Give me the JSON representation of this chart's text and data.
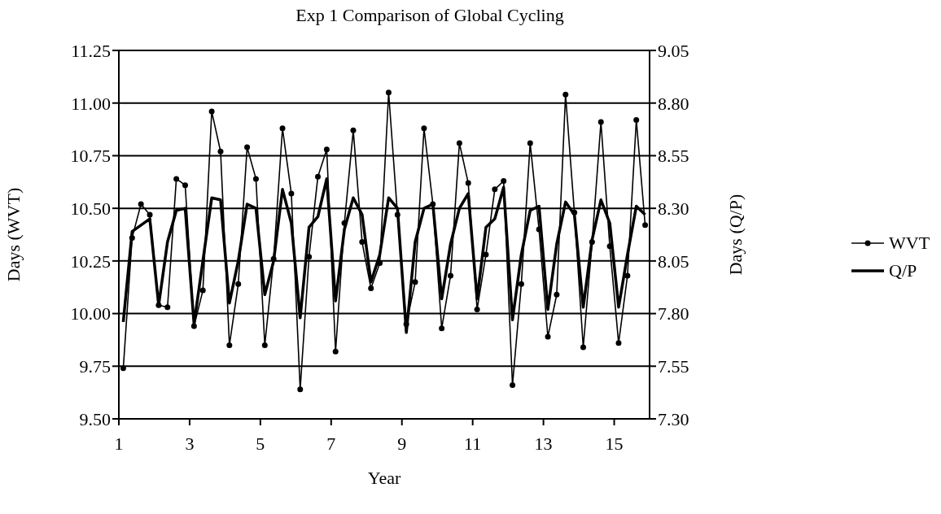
{
  "chart_data": {
    "type": "line",
    "title": "Exp 1 Comparison of Global Cycling",
    "xlabel": "Year",
    "ylabel": "Days (WVT)",
    "y2label": "Days (Q/P)",
    "x": [
      1.125,
      1.375,
      1.625,
      1.875,
      2.125,
      2.375,
      2.625,
      2.875,
      3.125,
      3.375,
      3.625,
      3.875,
      4.125,
      4.375,
      4.625,
      4.875,
      5.125,
      5.375,
      5.625,
      5.875,
      6.125,
      6.375,
      6.625,
      6.875,
      7.125,
      7.375,
      7.625,
      7.875,
      8.125,
      8.375,
      8.625,
      8.875,
      9.125,
      9.375,
      9.625,
      9.875,
      10.125,
      10.375,
      10.625,
      10.875,
      11.125,
      11.375,
      11.625,
      11.875,
      12.125,
      12.375,
      12.625,
      12.875,
      13.125,
      13.375,
      13.625,
      13.875,
      14.125,
      14.375,
      14.625,
      14.875,
      15.125,
      15.375,
      15.625,
      15.875
    ],
    "series": [
      {
        "name": "WVT",
        "color": "#000000",
        "marker": "circle",
        "values": [
          9.74,
          10.36,
          10.52,
          10.47,
          10.04,
          10.03,
          10.64,
          10.61,
          9.94,
          10.11,
          10.96,
          10.77,
          9.85,
          10.14,
          10.79,
          10.64,
          9.85,
          10.26,
          10.88,
          10.57,
          9.64,
          10.27,
          10.65,
          10.78,
          9.82,
          10.43,
          10.87,
          10.34,
          10.12,
          10.24,
          11.05,
          10.47,
          9.95,
          10.15,
          10.88,
          10.52,
          9.93,
          10.18,
          10.81,
          10.62,
          10.02,
          10.28,
          10.59,
          10.63,
          9.66,
          10.14,
          10.81,
          10.4,
          9.89,
          10.09,
          11.04,
          10.48,
          9.84,
          10.34,
          10.91,
          10.32,
          9.86,
          10.18,
          10.92,
          10.42
        ]
      },
      {
        "name": "Q/P",
        "color": "#000000",
        "marker": "none",
        "axis": "y2",
        "values": [
          7.76,
          8.19,
          8.22,
          8.25,
          7.84,
          8.14,
          8.29,
          8.3,
          7.75,
          8.05,
          8.35,
          8.34,
          7.85,
          8.05,
          8.32,
          8.3,
          7.89,
          8.05,
          8.39,
          8.23,
          7.78,
          8.21,
          8.26,
          8.44,
          7.86,
          8.2,
          8.35,
          8.27,
          7.95,
          8.08,
          8.35,
          8.3,
          7.71,
          8.14,
          8.3,
          8.32,
          7.87,
          8.13,
          8.3,
          8.37,
          7.87,
          8.21,
          8.25,
          8.4,
          7.77,
          8.08,
          8.29,
          8.31,
          7.82,
          8.13,
          8.33,
          8.27,
          7.83,
          8.15,
          8.34,
          8.23,
          7.83,
          8.08,
          8.31,
          8.27
        ]
      }
    ],
    "xlim": [
      1,
      16
    ],
    "xticks": [
      1,
      3,
      5,
      7,
      9,
      11,
      13,
      15
    ],
    "ylim": [
      9.5,
      11.25
    ],
    "yticks": [
      {
        "value": 9.5,
        "label": "9.50"
      },
      {
        "value": 9.75,
        "label": "9.75"
      },
      {
        "value": 10,
        "label": "10.00"
      },
      {
        "value": 10.25,
        "label": "10.25"
      },
      {
        "value": 10.5,
        "label": "10.50"
      },
      {
        "value": 10.75,
        "label": "10.75"
      },
      {
        "value": 11,
        "label": "11.00"
      },
      {
        "value": 11.25,
        "label": "11.25"
      }
    ],
    "y2lim": [
      7.3,
      9.05
    ],
    "y2ticks": [
      {
        "value": 7.3,
        "label": "7.30"
      },
      7.55,
      {
        "value": 7.8,
        "label": "7.80"
      },
      8.05,
      {
        "value": 8.3,
        "label": "8.30"
      },
      8.55,
      {
        "value": 8.8,
        "label": "8.80"
      },
      9.05
    ],
    "grid": "y",
    "legend": "right"
  }
}
